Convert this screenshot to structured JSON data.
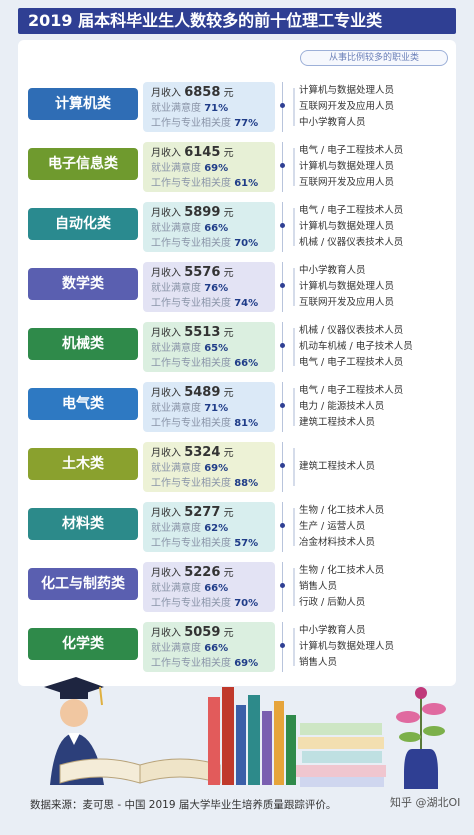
{
  "title": "2019 届本科毕业生人数较多的前十位理工专业类",
  "subhead": "从事比例较多的职业类",
  "labels": {
    "income": "月收入",
    "unit": "元",
    "satisfaction": "就业满意度",
    "relevance": "工作与专业相关度"
  },
  "rows": [
    {
      "category": "计算机类",
      "income": "6858",
      "satisfaction": "71%",
      "relevance": "77%",
      "jobs": [
        "计算机与数据处理人员",
        "互联网开发及应用人员",
        "中小学教育人员"
      ],
      "cat_color": "#2f6db5",
      "stats_bg": "#dceaf7"
    },
    {
      "category": "电子信息类",
      "income": "6145",
      "satisfaction": "69%",
      "relevance": "61%",
      "jobs": [
        "电气 / 电子工程技术人员",
        "计算机与数据处理人员",
        "互联网开发及应用人员"
      ],
      "cat_color": "#6f9a2e",
      "stats_bg": "#e7f0d6"
    },
    {
      "category": "自动化类",
      "income": "5899",
      "satisfaction": "66%",
      "relevance": "70%",
      "jobs": [
        "电气 / 电子工程技术人员",
        "计算机与数据处理人员",
        "机械 / 仪器仪表技术人员"
      ],
      "cat_color": "#2a8a8f",
      "stats_bg": "#d9eeee"
    },
    {
      "category": "数学类",
      "income": "5576",
      "satisfaction": "76%",
      "relevance": "74%",
      "jobs": [
        "中小学教育人员",
        "计算机与数据处理人员",
        "互联网开发及应用人员"
      ],
      "cat_color": "#5a5fb0",
      "stats_bg": "#e3e3f4"
    },
    {
      "category": "机械类",
      "income": "5513",
      "satisfaction": "65%",
      "relevance": "66%",
      "jobs": [
        "机械 / 仪器仪表技术人员",
        "机动车机械 / 电子技术人员",
        "电气 / 电子工程技术人员"
      ],
      "cat_color": "#2f8a4a",
      "stats_bg": "#dbefe0"
    },
    {
      "category": "电气类",
      "income": "5489",
      "satisfaction": "71%",
      "relevance": "81%",
      "jobs": [
        "电气 / 电子工程技术人员",
        "电力 / 能源技术人员",
        "建筑工程技术人员"
      ],
      "cat_color": "#2e79c2",
      "stats_bg": "#dbe9f7"
    },
    {
      "category": "土木类",
      "income": "5324",
      "satisfaction": "69%",
      "relevance": "88%",
      "jobs": [
        "建筑工程技术人员"
      ],
      "cat_color": "#8aa12e",
      "stats_bg": "#edf2d6"
    },
    {
      "category": "材料类",
      "income": "5277",
      "satisfaction": "62%",
      "relevance": "57%",
      "jobs": [
        "生物 / 化工技术人员",
        "生产 / 运营人员",
        "冶金材料技术人员"
      ],
      "cat_color": "#2c8a8a",
      "stats_bg": "#d8eeee"
    },
    {
      "category": "化工与制药类",
      "income": "5226",
      "satisfaction": "66%",
      "relevance": "70%",
      "jobs": [
        "生物 / 化工技术人员",
        "销售人员",
        "行政 / 后勤人员"
      ],
      "cat_color": "#5a5fb0",
      "stats_bg": "#e3e3f4"
    },
    {
      "category": "化学类",
      "income": "5059",
      "satisfaction": "66%",
      "relevance": "69%",
      "jobs": [
        "中小学教育人员",
        "计算机与数据处理人员",
        "销售人员"
      ],
      "cat_color": "#2f8a4a",
      "stats_bg": "#dbefe0"
    }
  ],
  "footer": "数据来源：麦可思 - 中国 2019 届大学毕业生培养质量跟踪评价。",
  "watermark": "知乎 @湖北OI"
}
